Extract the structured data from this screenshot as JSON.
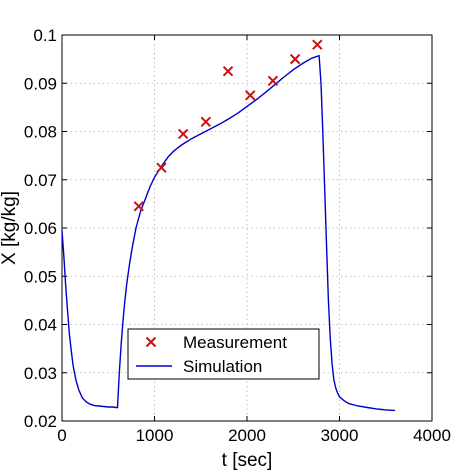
{
  "chart_data": {
    "type": "line",
    "xlabel": "t [sec]",
    "ylabel": "X [kg/kg]",
    "xlim": [
      0,
      4000
    ],
    "ylim": [
      0.02,
      0.1
    ],
    "xticks": [
      0,
      1000,
      2000,
      3000,
      4000
    ],
    "xtick_labels": [
      "0",
      "1000",
      "2000",
      "3000",
      "4000"
    ],
    "yticks": [
      0.02,
      0.03,
      0.04,
      0.05,
      0.06,
      0.07,
      0.08,
      0.09,
      0.1
    ],
    "ytick_labels": [
      "0.02",
      "0.03",
      "0.04",
      "0.05",
      "0.06",
      "0.07",
      "0.08",
      "0.09",
      "0.1"
    ],
    "grid": true,
    "legend_position": "bottom-center",
    "series": [
      {
        "name": "Measurement",
        "style": "markers",
        "marker": "x",
        "color": "#cc1111",
        "x": [
          830,
          1075,
          1310,
          1555,
          1795,
          2035,
          2280,
          2520,
          2760
        ],
        "y": [
          0.0645,
          0.0725,
          0.0795,
          0.082,
          0.0925,
          0.0875,
          0.0905,
          0.095,
          0.098
        ]
      },
      {
        "name": "Simulation",
        "style": "line",
        "color": "#0000cc",
        "x": [
          0,
          20,
          40,
          60,
          80,
          100,
          120,
          150,
          180,
          220,
          260,
          300,
          350,
          400,
          450,
          500,
          550,
          580,
          600,
          620,
          640,
          660,
          680,
          700,
          730,
          760,
          800,
          850,
          900,
          950,
          1000,
          1050,
          1100,
          1150,
          1200,
          1250,
          1300,
          1350,
          1400,
          1500,
          1600,
          1700,
          1800,
          1900,
          2000,
          2100,
          2200,
          2300,
          2400,
          2500,
          2600,
          2700,
          2780,
          2800,
          2820,
          2840,
          2860,
          2880,
          2900,
          2920,
          2940,
          2960,
          2980,
          3000,
          3050,
          3100,
          3200,
          3300,
          3400,
          3500,
          3600
        ],
        "y": [
          0.0595,
          0.054,
          0.048,
          0.043,
          0.038,
          0.0345,
          0.0315,
          0.0285,
          0.0265,
          0.0248,
          0.024,
          0.0235,
          0.0232,
          0.0231,
          0.023,
          0.0229,
          0.0229,
          0.0228,
          0.0228,
          0.03,
          0.036,
          0.041,
          0.045,
          0.0485,
          0.0525,
          0.056,
          0.06,
          0.0635,
          0.066,
          0.0685,
          0.0705,
          0.072,
          0.0735,
          0.0748,
          0.0758,
          0.0766,
          0.0773,
          0.0779,
          0.0785,
          0.0795,
          0.0805,
          0.0815,
          0.0826,
          0.0838,
          0.0852,
          0.0866,
          0.0881,
          0.0897,
          0.0913,
          0.0928,
          0.0941,
          0.0952,
          0.0957,
          0.09,
          0.08,
          0.068,
          0.056,
          0.045,
          0.037,
          0.0318,
          0.0285,
          0.0268,
          0.0258,
          0.025,
          0.0242,
          0.0236,
          0.0231,
          0.0228,
          0.0225,
          0.0223,
          0.0222
        ]
      }
    ]
  }
}
